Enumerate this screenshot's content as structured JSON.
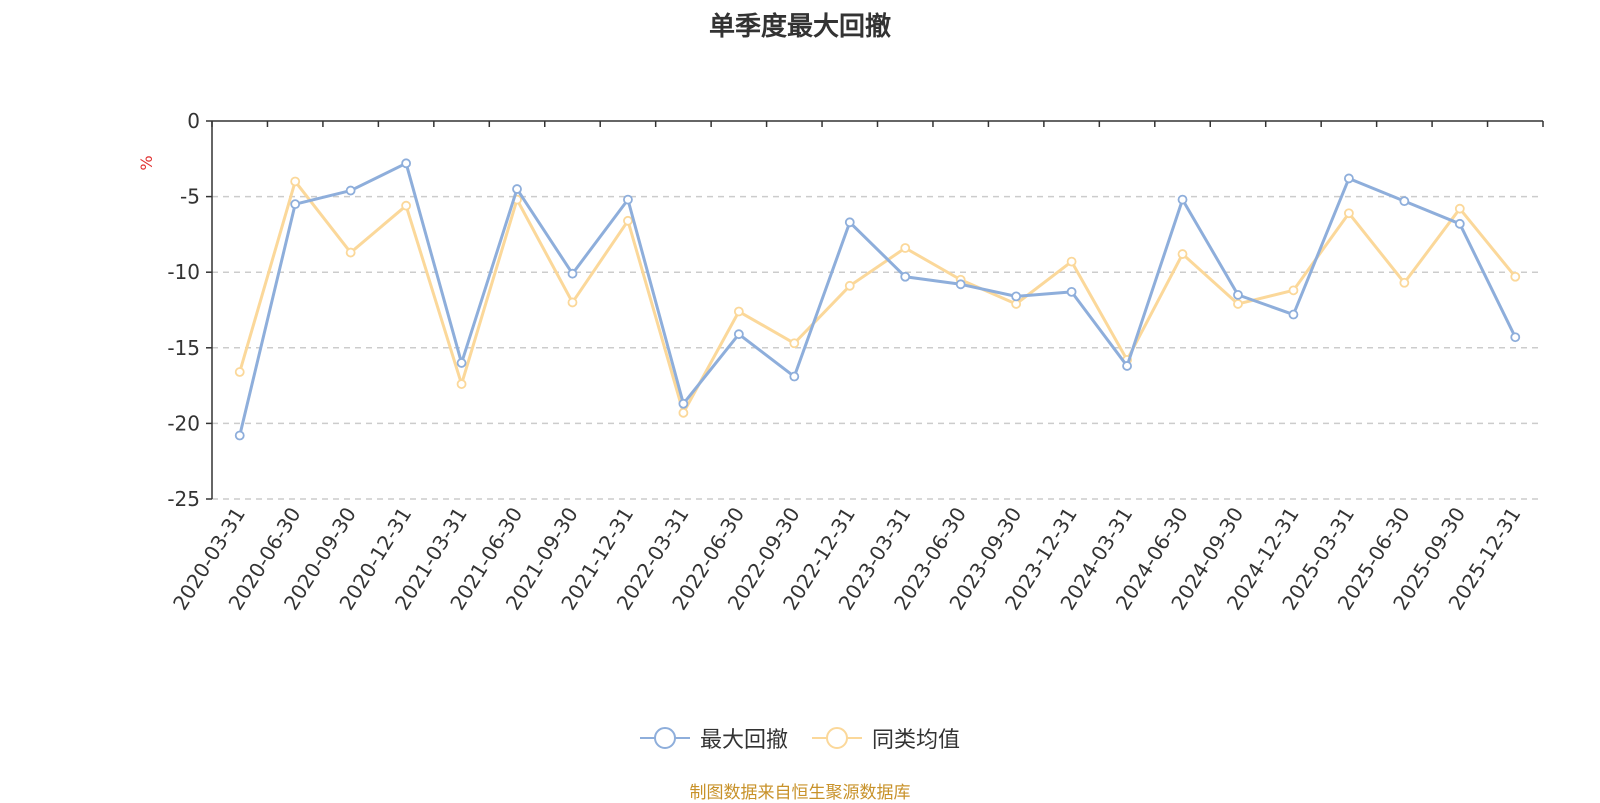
{
  "chart_data": {
    "type": "line",
    "title": "单季度最大回撤",
    "ylabel": "%",
    "ylim": [
      -25,
      0
    ],
    "yticks": [
      0,
      -5,
      -10,
      -15,
      -20,
      -25
    ],
    "grid": true,
    "legend_position": "bottom",
    "categories": [
      "2020-03-31",
      "2020-06-30",
      "2020-09-30",
      "2020-12-31",
      "2021-03-31",
      "2021-06-30",
      "2021-09-30",
      "2021-12-31",
      "2022-03-31",
      "2022-06-30",
      "2022-09-30",
      "2022-12-31",
      "2023-03-31",
      "2023-06-30",
      "2023-09-30",
      "2023-12-31",
      "2024-03-31",
      "2024-06-30",
      "2024-09-30",
      "2024-12-31",
      "2025-03-31",
      "2025-06-30",
      "2025-09-30",
      "2025-12-31"
    ],
    "series": [
      {
        "name": "最大回撤",
        "color": "#8eaedb",
        "values": [
          -20.8,
          -5.5,
          -4.6,
          -2.8,
          -16.0,
          -4.5,
          -10.1,
          -5.2,
          -18.7,
          -14.1,
          -16.9,
          -6.7,
          -10.3,
          -10.8,
          -11.6,
          -11.3,
          -16.2,
          -5.2,
          -11.5,
          -12.8,
          -3.8,
          -5.3,
          -6.8,
          -14.3
        ]
      },
      {
        "name": "同类均值",
        "color": "#fbd89a",
        "values": [
          -16.6,
          -4.0,
          -8.7,
          -5.6,
          -17.4,
          -5.2,
          -12.0,
          -6.6,
          -19.3,
          -12.6,
          -14.7,
          -10.9,
          -8.4,
          -10.5,
          -12.1,
          -9.3,
          -15.8,
          -8.8,
          -12.1,
          -11.2,
          -6.1,
          -10.7,
          -5.8,
          -10.3
        ]
      }
    ],
    "source_note": "制图数据来自恒生聚源数据库"
  }
}
